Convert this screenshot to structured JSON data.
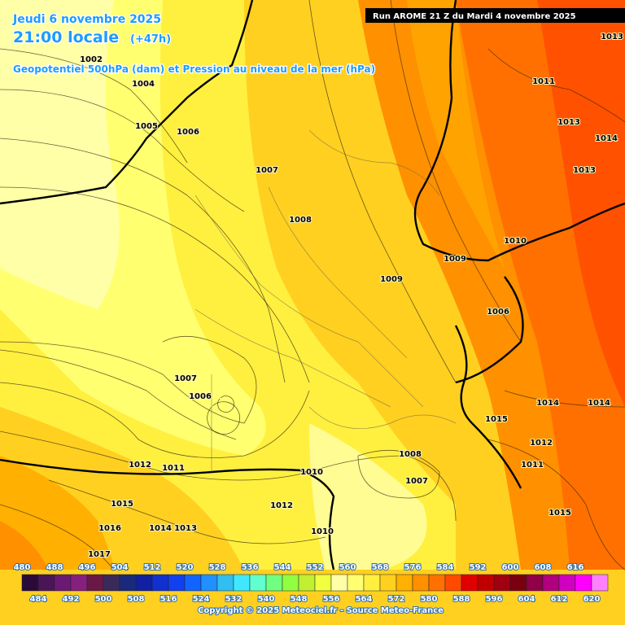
{
  "header": {
    "date": "Jeudi 6 novembre 2025",
    "time": "21:00 locale",
    "lead": "(+47h)",
    "subtitle": "Geopotentiel 500hPa (dam) et Pression au niveau de la mer (hPa)",
    "run": "Run AROME 21 Z du Mardi 4 novembre 2025"
  },
  "isobar_labels": [
    1002,
    1004,
    1005,
    1006,
    1007,
    1008,
    1009,
    1009,
    1010,
    1011,
    1013,
    1013,
    1014,
    1013,
    1007,
    1006,
    1012,
    1011,
    1010,
    1008,
    1007,
    1015,
    1012,
    1016,
    1014,
    1013,
    1010,
    1017,
    1014,
    1014,
    1015,
    1012,
    1011,
    1015,
    1006
  ],
  "legend": {
    "values": [
      480,
      484,
      488,
      492,
      496,
      500,
      504,
      508,
      512,
      516,
      520,
      524,
      528,
      532,
      536,
      540,
      544,
      548,
      552,
      556,
      560,
      564,
      568,
      572,
      576,
      580,
      584,
      588,
      592,
      596,
      600,
      604,
      608,
      612,
      616,
      620
    ],
    "colors": [
      "#2a0a3a",
      "#4a1556",
      "#6a1a72",
      "#86207f",
      "#6a1848",
      "#3a2a5a",
      "#1a2a7a",
      "#1020a0",
      "#1030d0",
      "#1040f0",
      "#1064ff",
      "#2090ff",
      "#30bff0",
      "#40e8ff",
      "#60ffd0",
      "#70ff80",
      "#90ff40",
      "#c0f030",
      "#f0ff40",
      "#ffffa8",
      "#ffff70",
      "#fff040",
      "#ffd020",
      "#ffb000",
      "#ff9000",
      "#ff7000",
      "#ff4a00",
      "#e00000",
      "#c00000",
      "#a00010",
      "#7a0010",
      "#900048",
      "#b00080",
      "#d000c0",
      "#ff00ff",
      "#ff80ff"
    ]
  },
  "copyright": "Copyright © 2025 Meteociel.fr - Source Meteo-France"
}
